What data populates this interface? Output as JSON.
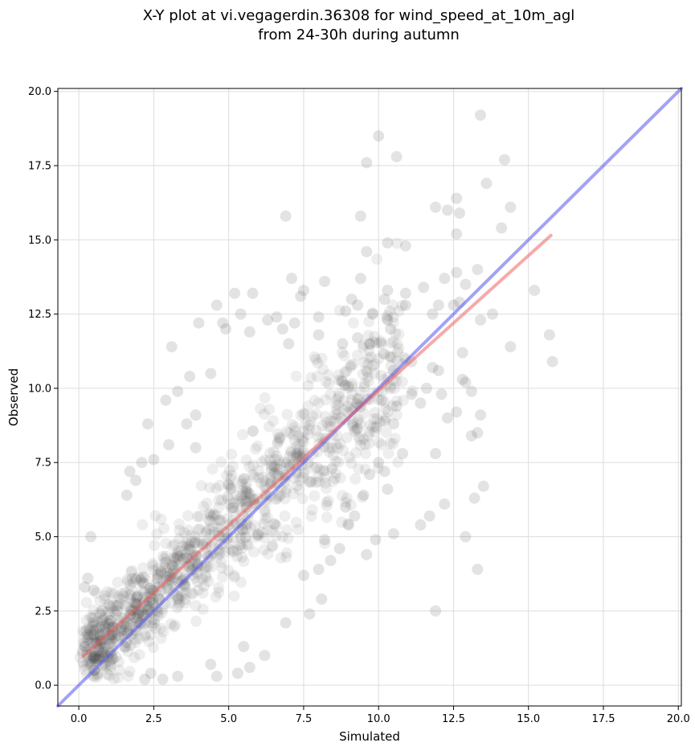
{
  "chart_data": {
    "type": "scatter",
    "title": "X-Y plot at vi.vegagerdin.36308 for wind_speed_at_10m_agl",
    "subtitle": "from 24-30h during autumn",
    "xlabel": "Simulated",
    "ylabel": "Observed",
    "xlim": [
      -0.7,
      20.1
    ],
    "ylim": [
      -0.7,
      20.1
    ],
    "grid": true,
    "xticks": [
      "0.0",
      "2.5",
      "5.0",
      "7.5",
      "10.0",
      "12.5",
      "15.0",
      "17.5",
      "20.0"
    ],
    "yticks": [
      "0.0",
      "2.5",
      "5.0",
      "7.5",
      "10.0",
      "12.5",
      "15.0",
      "17.5",
      "20.0"
    ],
    "xtick_values": [
      0,
      2.5,
      5,
      7.5,
      10,
      12.5,
      15,
      17.5,
      20
    ],
    "ytick_values": [
      0,
      2.5,
      5,
      7.5,
      10,
      12.5,
      15,
      17.5,
      20
    ],
    "point_color": "#444444",
    "one_to_one_line": {
      "from": [
        -0.7,
        -0.7
      ],
      "to": [
        20.1,
        20.1
      ],
      "color": "#5555ee"
    },
    "fit_line": {
      "from": [
        0.15,
        0.98
      ],
      "to": [
        15.75,
        15.15
      ],
      "color": "#ee5555"
    },
    "series": [
      {
        "points": [
          [
            13.4,
            19.2
          ],
          [
            10.0,
            18.5
          ],
          [
            9.6,
            17.6
          ],
          [
            10.6,
            17.8
          ],
          [
            14.2,
            17.7
          ],
          [
            13.6,
            16.9
          ],
          [
            12.6,
            16.4
          ],
          [
            12.7,
            15.9
          ],
          [
            12.3,
            16.0
          ],
          [
            11.9,
            16.1
          ],
          [
            14.4,
            16.1
          ],
          [
            6.9,
            15.8
          ],
          [
            9.4,
            15.8
          ],
          [
            14.1,
            15.4
          ],
          [
            12.6,
            15.2
          ],
          [
            10.3,
            14.9
          ],
          [
            10.9,
            14.8
          ],
          [
            9.6,
            14.6
          ],
          [
            12.9,
            13.5
          ],
          [
            13.3,
            14.0
          ],
          [
            12.6,
            13.9
          ],
          [
            12.2,
            13.7
          ],
          [
            11.5,
            13.4
          ],
          [
            15.2,
            13.3
          ],
          [
            10.3,
            13.3
          ],
          [
            10.2,
            13.0
          ],
          [
            10.9,
            13.2
          ],
          [
            7.4,
            13.1
          ],
          [
            7.5,
            13.3
          ],
          [
            5.2,
            13.2
          ],
          [
            5.8,
            13.2
          ],
          [
            8.2,
            13.6
          ],
          [
            9.4,
            13.7
          ],
          [
            7.1,
            13.7
          ],
          [
            12.7,
            12.9
          ],
          [
            13.4,
            12.3
          ],
          [
            13.8,
            12.5
          ],
          [
            12.0,
            12.8
          ],
          [
            12.5,
            12.8
          ],
          [
            11.8,
            12.5
          ],
          [
            10.9,
            12.8
          ],
          [
            9.3,
            12.8
          ],
          [
            9.1,
            13.0
          ],
          [
            8.9,
            12.6
          ],
          [
            4.6,
            12.8
          ],
          [
            4.8,
            12.2
          ],
          [
            9.8,
            12.5
          ],
          [
            10.3,
            12.3
          ],
          [
            8.0,
            12.4
          ],
          [
            7.2,
            12.2
          ],
          [
            5.4,
            12.5
          ],
          [
            6.3,
            12.3
          ],
          [
            6.6,
            12.4
          ],
          [
            4.0,
            12.2
          ],
          [
            4.9,
            12.0
          ],
          [
            5.7,
            11.9
          ],
          [
            6.8,
            12.0
          ],
          [
            7.0,
            11.5
          ],
          [
            8.0,
            11.8
          ],
          [
            8.8,
            11.5
          ],
          [
            9.3,
            11.7
          ],
          [
            9.7,
            11.5
          ],
          [
            10.4,
            12.0
          ],
          [
            12.8,
            11.2
          ],
          [
            14.4,
            11.4
          ],
          [
            15.7,
            11.8
          ],
          [
            15.8,
            10.9
          ],
          [
            12.0,
            10.6
          ],
          [
            11.8,
            10.7
          ],
          [
            11.1,
            10.9
          ],
          [
            10.5,
            10.6
          ],
          [
            11.6,
            10.0
          ],
          [
            11.1,
            9.8
          ],
          [
            11.4,
            9.5
          ],
          [
            12.8,
            10.3
          ],
          [
            12.9,
            10.2
          ],
          [
            13.1,
            9.9
          ],
          [
            12.3,
            9.0
          ],
          [
            12.6,
            9.2
          ],
          [
            13.4,
            9.1
          ],
          [
            13.1,
            8.4
          ],
          [
            13.3,
            8.5
          ],
          [
            12.1,
            9.8
          ],
          [
            10.5,
            8.8
          ],
          [
            10.2,
            8.9
          ],
          [
            10.6,
            9.4
          ],
          [
            10.1,
            9.6
          ],
          [
            11.9,
            7.8
          ],
          [
            12.2,
            6.1
          ],
          [
            13.5,
            6.7
          ],
          [
            13.2,
            6.3
          ],
          [
            12.9,
            5.0
          ],
          [
            13.3,
            3.9
          ],
          [
            11.9,
            2.5
          ],
          [
            11.7,
            5.7
          ],
          [
            11.4,
            5.4
          ],
          [
            10.5,
            5.1
          ],
          [
            10.3,
            6.6
          ],
          [
            10.2,
            7.2
          ],
          [
            10.8,
            7.8
          ],
          [
            10.0,
            7.5
          ],
          [
            9.7,
            7.1
          ],
          [
            9.5,
            6.4
          ],
          [
            9.2,
            5.7
          ],
          [
            9.9,
            4.9
          ],
          [
            9.6,
            4.4
          ],
          [
            9.0,
            5.4
          ],
          [
            8.9,
            6.0
          ],
          [
            8.4,
            4.2
          ],
          [
            8.1,
            2.9
          ],
          [
            7.7,
            2.4
          ],
          [
            6.9,
            2.1
          ],
          [
            7.5,
            3.7
          ],
          [
            8.0,
            3.9
          ],
          [
            8.7,
            4.6
          ],
          [
            8.2,
            4.9
          ],
          [
            0.4,
            5.0
          ],
          [
            0.2,
            3.3
          ],
          [
            0.3,
            3.6
          ],
          [
            0.5,
            3.2
          ],
          [
            0.3,
            1.7
          ],
          [
            0.2,
            1.3
          ],
          [
            0.5,
            0.5
          ],
          [
            0.4,
            0.7
          ],
          [
            0.8,
            1.1
          ],
          [
            2.4,
            0.4
          ],
          [
            2.8,
            0.2
          ],
          [
            3.3,
            0.3
          ],
          [
            2.2,
            0.2
          ],
          [
            4.4,
            0.7
          ],
          [
            4.6,
            0.3
          ],
          [
            5.3,
            0.4
          ],
          [
            5.7,
            0.6
          ],
          [
            6.2,
            1.0
          ],
          [
            5.5,
            1.3
          ],
          [
            3.1,
            11.4
          ],
          [
            2.9,
            9.6
          ],
          [
            3.3,
            9.9
          ],
          [
            2.3,
            8.8
          ],
          [
            3.6,
            8.8
          ],
          [
            4.4,
            10.5
          ],
          [
            3.7,
            10.4
          ],
          [
            3.9,
            8.0
          ],
          [
            3.9,
            9.1
          ],
          [
            1.7,
            7.2
          ],
          [
            2.1,
            7.5
          ],
          [
            2.5,
            7.6
          ],
          [
            3.0,
            8.1
          ],
          [
            1.9,
            6.9
          ],
          [
            1.6,
            6.4
          ]
        ]
      }
    ]
  }
}
